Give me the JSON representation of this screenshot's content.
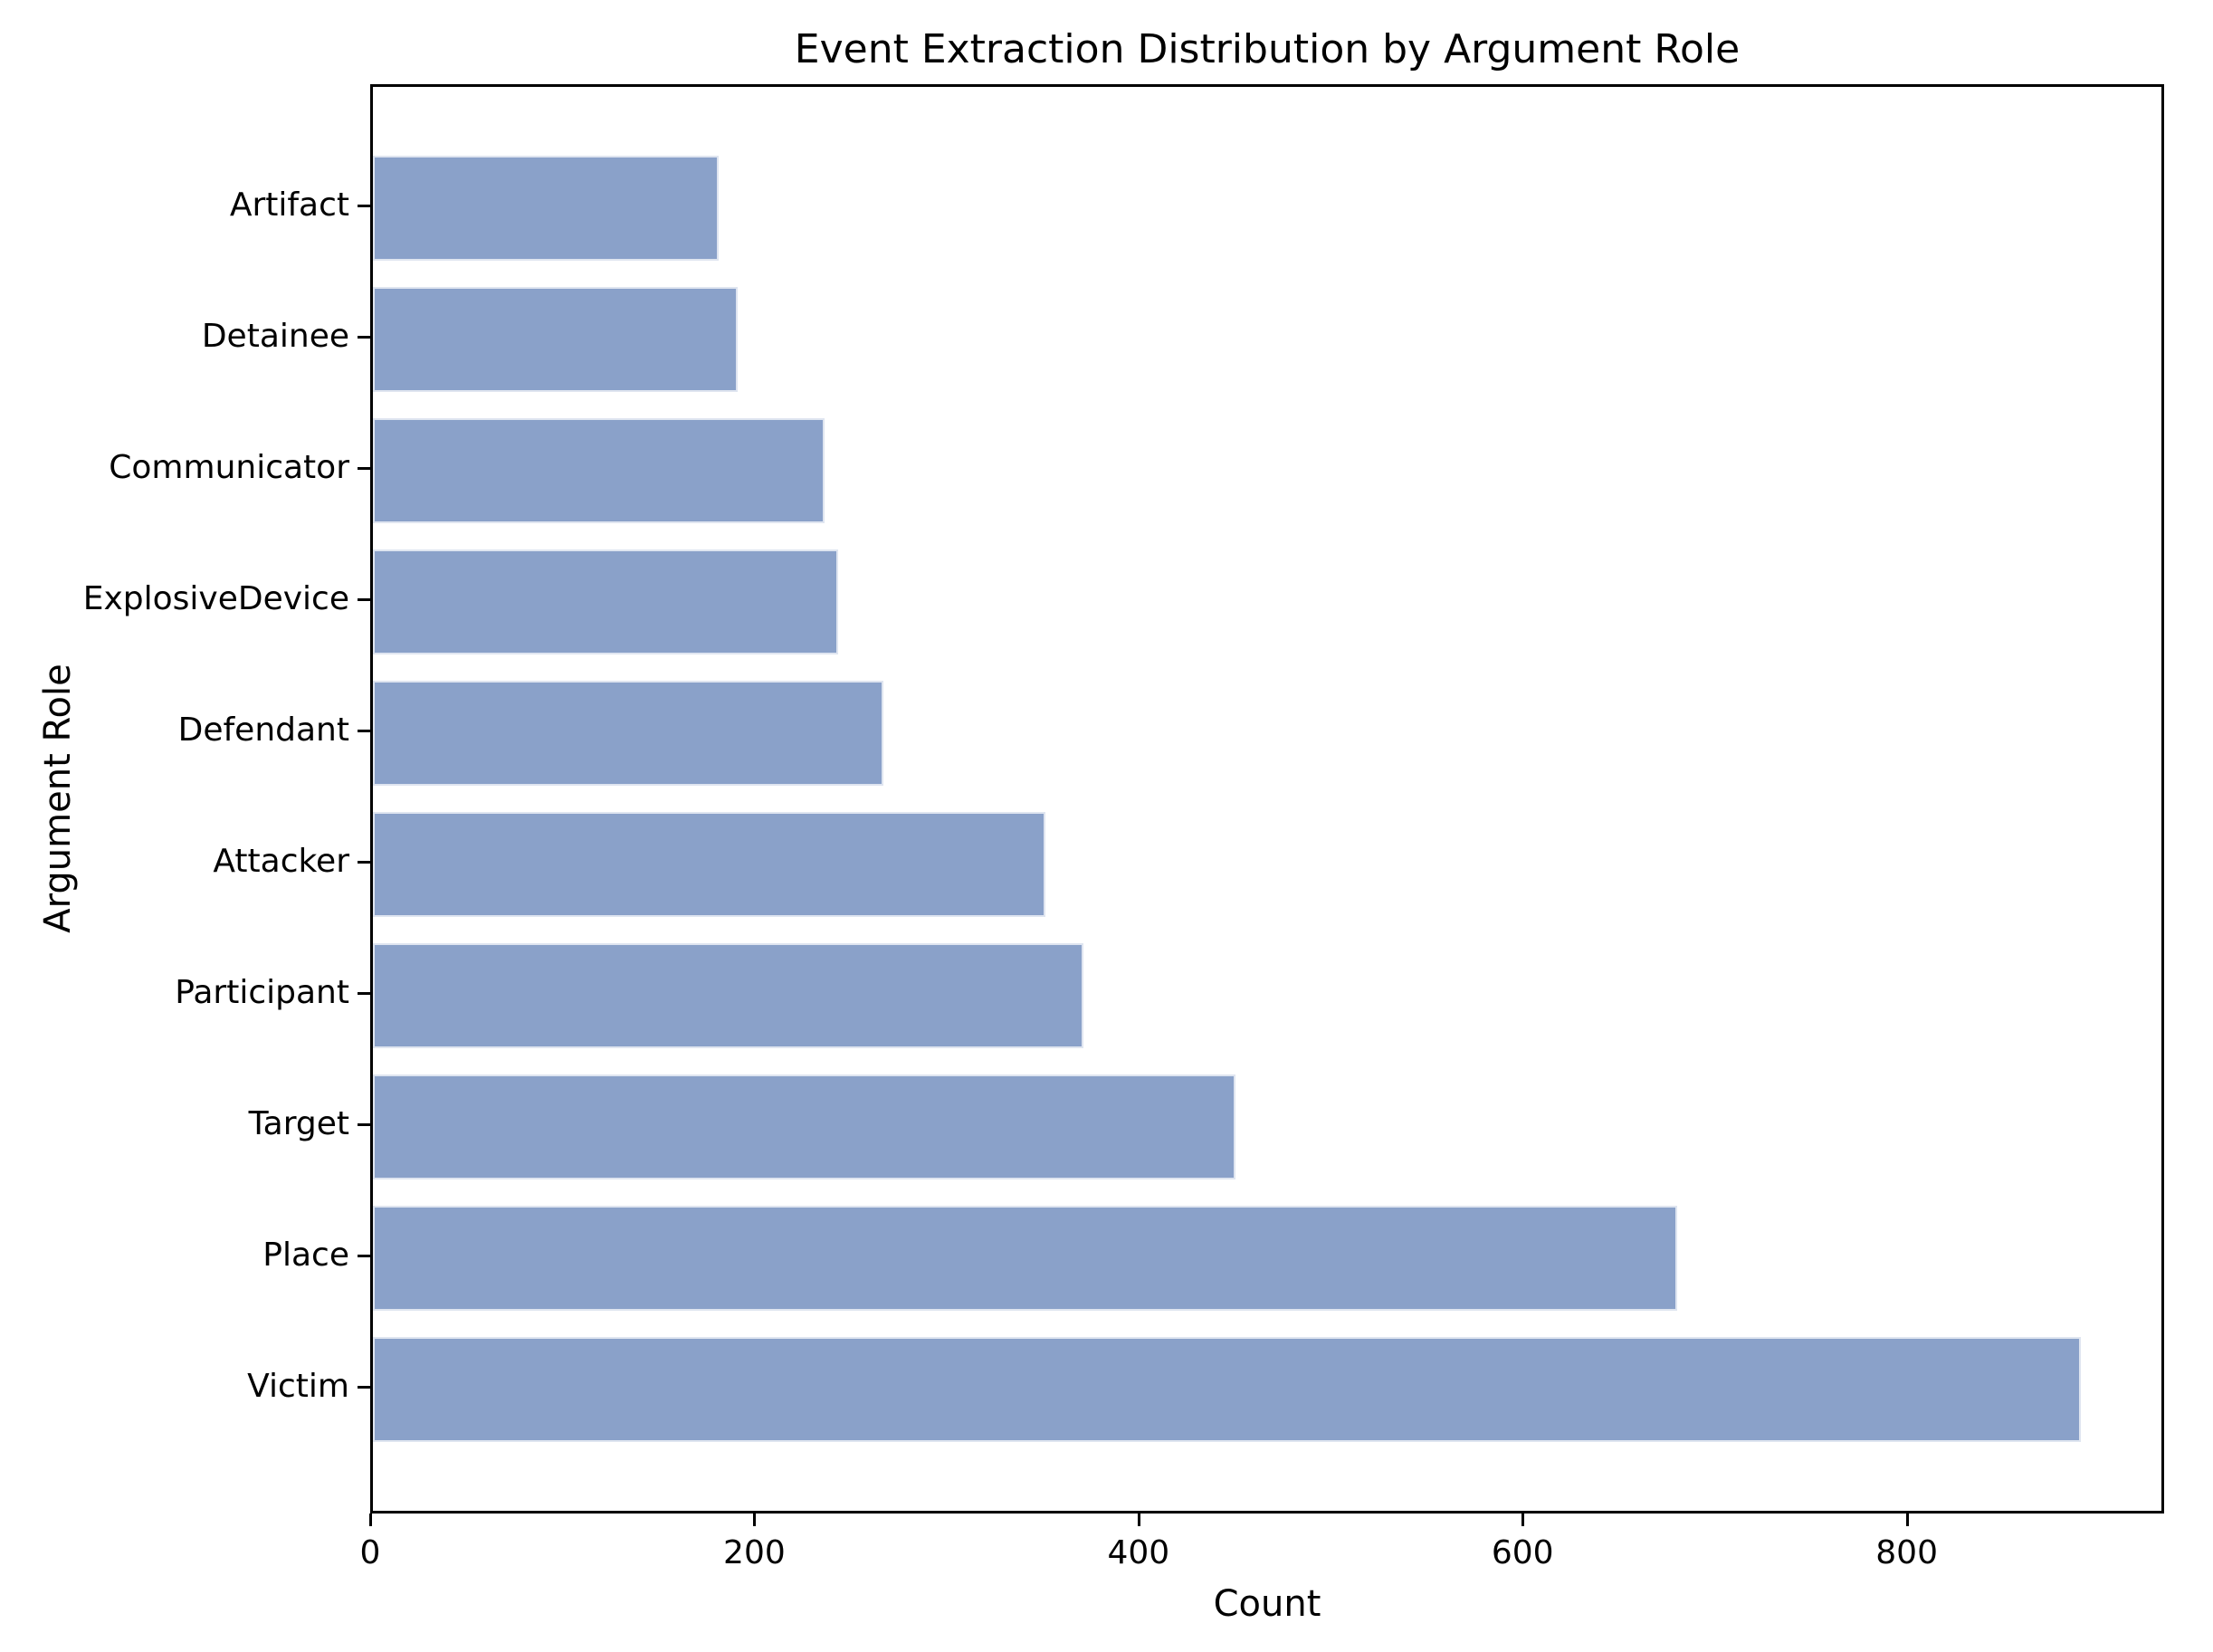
{
  "title": "Event Extraction Distribution by Argument Role",
  "chart_data": {
    "type": "bar",
    "orientation": "horizontal",
    "title": "Event Extraction Distribution by Argument Role",
    "xlabel": "Count",
    "ylabel": "Argument Role",
    "categories": [
      "Artifact",
      "Detainee",
      "Communicator",
      "ExplosiveDevice",
      "Defendant",
      "Attacker",
      "Participant",
      "Target",
      "Place",
      "Victim"
    ],
    "values": [
      180,
      190,
      235,
      242,
      266,
      350,
      370,
      449,
      679,
      889
    ],
    "xlim": [
      0,
      934
    ],
    "xticks": [
      0,
      200,
      400,
      600,
      800
    ],
    "grid": false,
    "legend": null,
    "bar_color": "#8aa1c9",
    "bar_edge_color": "#dfe5f0",
    "spine_color": "#000000",
    "text_color": "#000000",
    "background_color": "#ffffff"
  }
}
